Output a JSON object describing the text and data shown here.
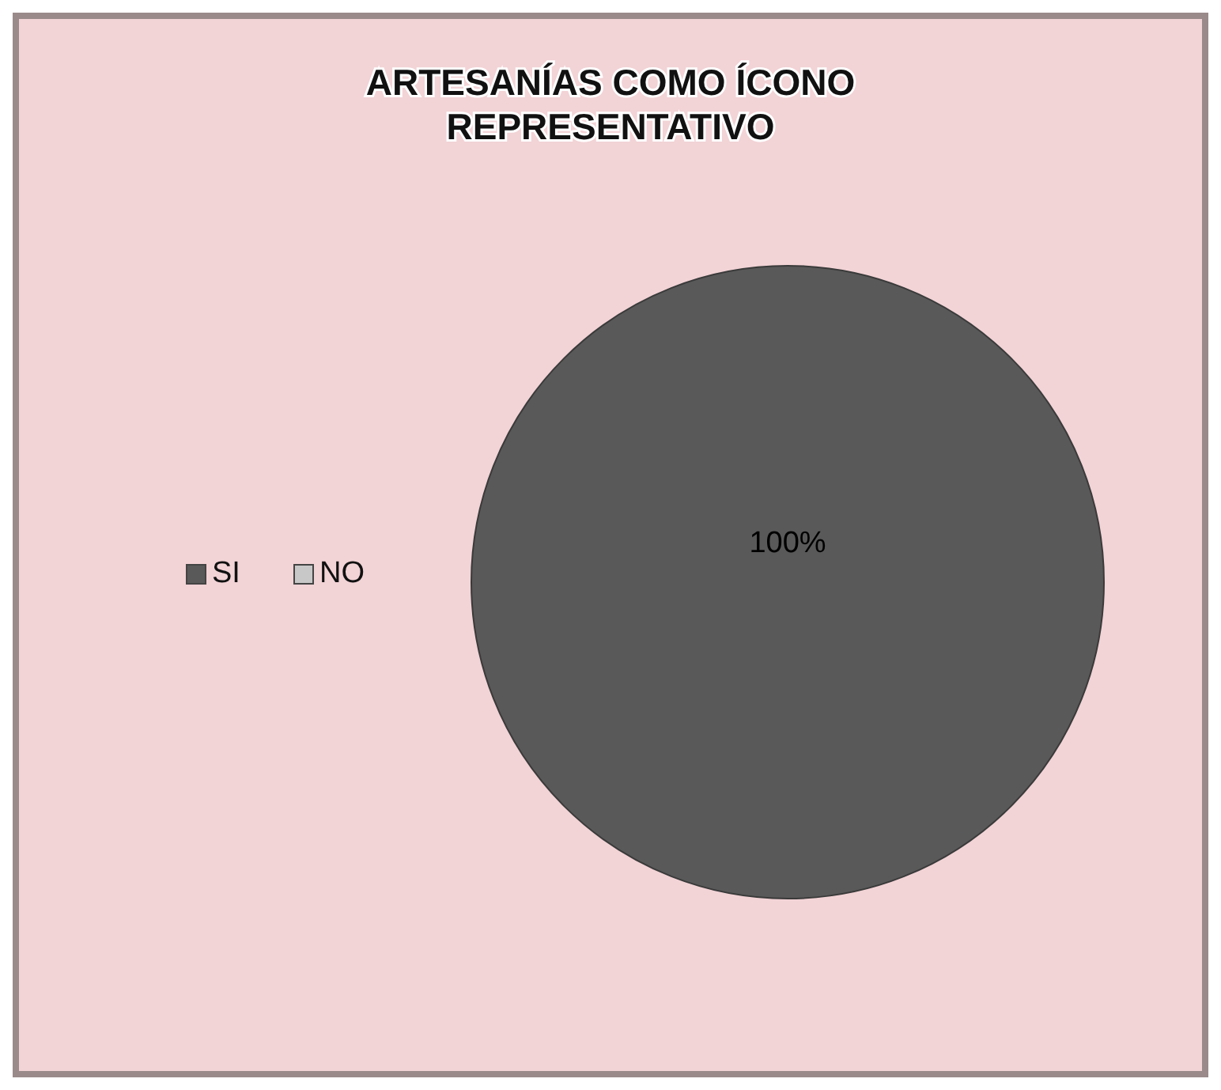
{
  "chart_data": {
    "type": "pie",
    "title": "ARTESANÍAS COMO ÍCONO REPRESENTATIVO",
    "categories": [
      "SI",
      "NO"
    ],
    "values": [
      100,
      0
    ],
    "colors": [
      "#595959",
      "#c8c8c8"
    ],
    "value_labels": [
      "100%",
      null
    ],
    "legend": "left"
  }
}
